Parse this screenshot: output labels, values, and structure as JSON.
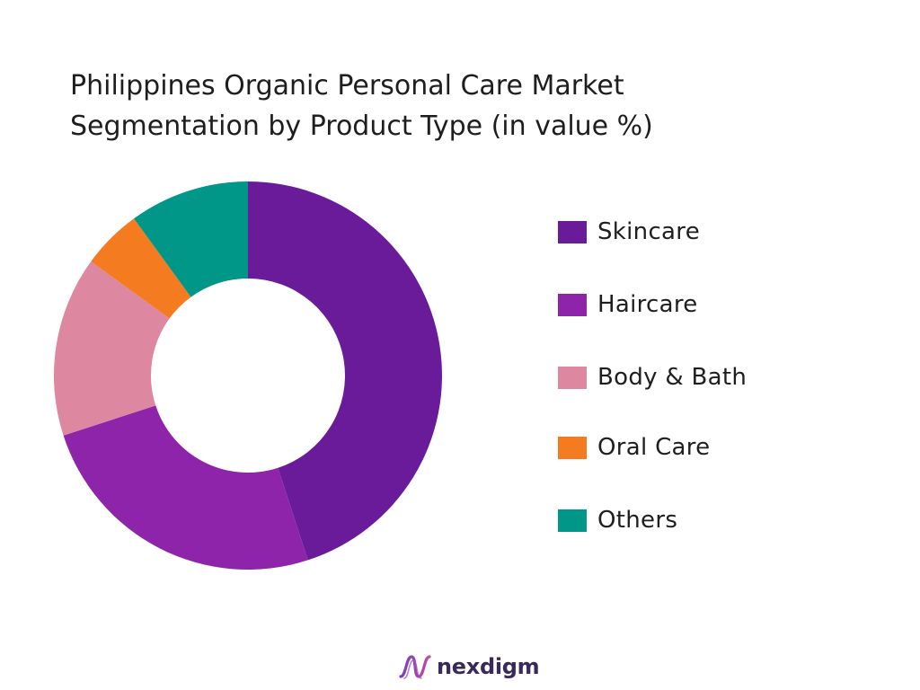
{
  "chart_data": {
    "type": "pie",
    "donut": true,
    "title": "Philippines Organic Personal Care Market Segmentation by Product Type (in value %)",
    "title_lines": [
      "Philippines Organic Personal Care Market",
      "Segmentation by Product Type (in value %)"
    ],
    "categories": [
      "Skincare",
      "Haircare",
      "Body & Bath",
      "Oral Care",
      "Others"
    ],
    "values": [
      45,
      25,
      15,
      5,
      10
    ],
    "colors": [
      "#6a1b9a",
      "#8e24aa",
      "#de87a0",
      "#f47b20",
      "#009688"
    ],
    "legend_position": "right"
  },
  "brand": {
    "name": "nexdigm",
    "logo_icon": "nexdigm-wave-logo-icon"
  }
}
